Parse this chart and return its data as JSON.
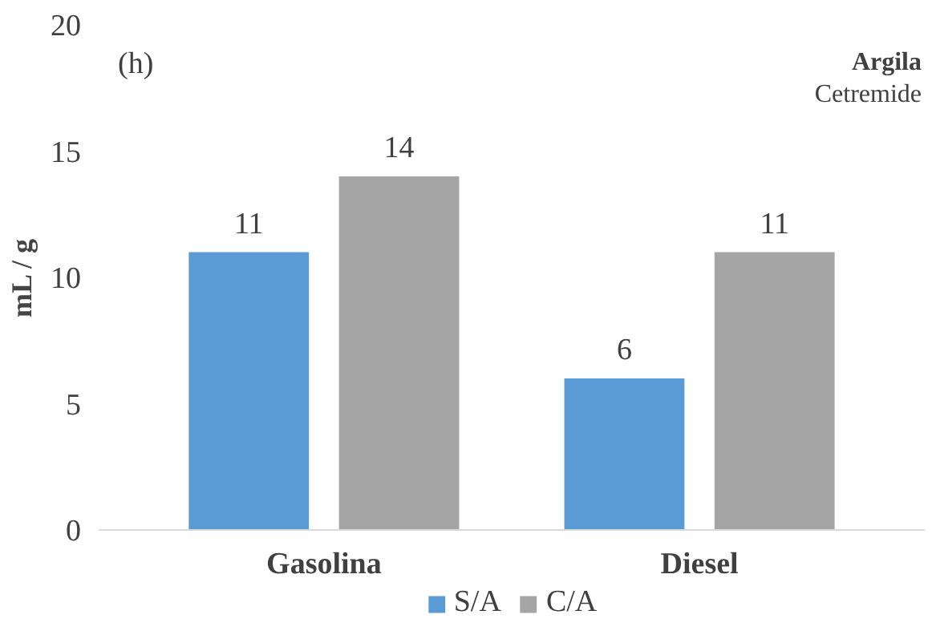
{
  "chart_data": {
    "type": "bar",
    "ylabel": "mL / g",
    "categories": [
      "Gasolina",
      "Diesel"
    ],
    "series": [
      {
        "name": "S/A",
        "color": "#5b9bd5",
        "values": [
          11,
          6
        ]
      },
      {
        "name": "C/A",
        "color": "#a5a5a5",
        "values": [
          14,
          11
        ]
      }
    ],
    "ylim": [
      0,
      20
    ],
    "yticks": [
      0,
      5,
      10,
      15,
      20
    ],
    "grid": false,
    "legend": "bottom",
    "data_labels": true,
    "annotations": [
      "(h)",
      "Argila",
      "Cetremide"
    ]
  }
}
